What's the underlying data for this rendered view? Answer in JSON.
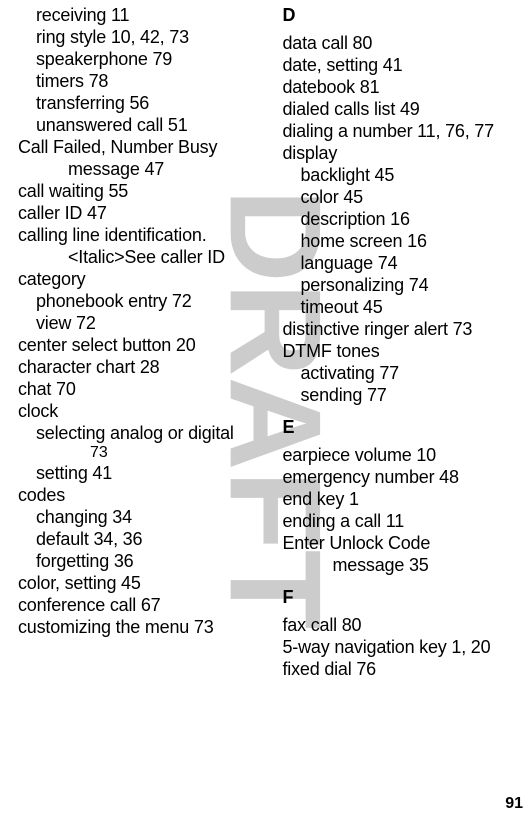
{
  "watermark": {
    "text": "DRAFT",
    "color": "#cccccc",
    "opacity": 1.0
  },
  "page_number": "91",
  "left_column": [
    {
      "cls": "sub1",
      "text": "receiving  11"
    },
    {
      "cls": "sub1",
      "text": "ring style  10, 42, 73"
    },
    {
      "cls": "sub1",
      "text": "speakerphone  79"
    },
    {
      "cls": "sub1",
      "text": "timers  78"
    },
    {
      "cls": "sub1",
      "text": "transferring  56"
    },
    {
      "cls": "sub1",
      "text": "unanswered call  51"
    },
    {
      "cls": "entry",
      "text": "Call Failed, Number Busy"
    },
    {
      "cls": "sub2",
      "text": "message  47"
    },
    {
      "cls": "entry",
      "text": "call waiting  55"
    },
    {
      "cls": "entry",
      "text": "caller ID  47"
    },
    {
      "cls": "entry",
      "text": "calling line identification."
    },
    {
      "cls": "sub2",
      "text": "<Italic>See caller ID"
    },
    {
      "cls": "entry",
      "text": "category"
    },
    {
      "cls": "sub1",
      "text": "phonebook entry  72"
    },
    {
      "cls": "sub1",
      "text": "view  72"
    },
    {
      "cls": "entry",
      "text": "center select button  20"
    },
    {
      "cls": "entry",
      "text": "character chart  28"
    },
    {
      "cls": "entry",
      "text": "chat  70"
    },
    {
      "cls": "entry",
      "text": "clock"
    },
    {
      "cls": "sub1",
      "text": "selecting analog or digital"
    },
    {
      "cls": "sub3",
      "text": "73"
    },
    {
      "cls": "sub1",
      "text": "setting  41"
    },
    {
      "cls": "entry",
      "text": "codes"
    },
    {
      "cls": "sub1",
      "text": "changing  34"
    },
    {
      "cls": "sub1",
      "text": "default  34, 36"
    },
    {
      "cls": "sub1",
      "text": "forgetting  36"
    },
    {
      "cls": "entry",
      "text": "color, setting  45"
    },
    {
      "cls": "entry",
      "text": "conference call  67"
    },
    {
      "cls": "entry",
      "text": "customizing the menu  73"
    }
  ],
  "right_column": [
    {
      "cls": "letter first",
      "text": "D"
    },
    {
      "cls": "entry",
      "text": "data call  80"
    },
    {
      "cls": "entry",
      "text": "date, setting  41"
    },
    {
      "cls": "entry",
      "text": "datebook  81"
    },
    {
      "cls": "entry",
      "text": "dialed calls list  49"
    },
    {
      "cls": "entry",
      "text": "dialing a number  11, 76, 77"
    },
    {
      "cls": "entry",
      "text": "display"
    },
    {
      "cls": "sub1",
      "text": "backlight  45"
    },
    {
      "cls": "sub1",
      "text": "color  45"
    },
    {
      "cls": "sub1",
      "text": "description  16"
    },
    {
      "cls": "sub1",
      "text": "home screen  16"
    },
    {
      "cls": "sub1",
      "text": "language  74"
    },
    {
      "cls": "sub1",
      "text": "personalizing  74"
    },
    {
      "cls": "sub1",
      "text": "timeout  45"
    },
    {
      "cls": "entry",
      "text": "distinctive ringer alert  73"
    },
    {
      "cls": "entry",
      "text": "DTMF tones"
    },
    {
      "cls": "sub1",
      "text": "activating  77"
    },
    {
      "cls": "sub1",
      "text": "sending  77"
    },
    {
      "cls": "letter",
      "text": "E"
    },
    {
      "cls": "entry",
      "text": "earpiece volume  10"
    },
    {
      "cls": "entry",
      "text": "emergency number  48"
    },
    {
      "cls": "entry",
      "text": "end key  1"
    },
    {
      "cls": "entry",
      "text": "ending a call  11"
    },
    {
      "cls": "entry",
      "text": "Enter Unlock Code"
    },
    {
      "cls": "sub2",
      "text": "message  35"
    },
    {
      "cls": "letter",
      "text": "F"
    },
    {
      "cls": "entry",
      "text": "fax call  80"
    },
    {
      "cls": "entry",
      "text": "5-way navigation key  1, 20"
    },
    {
      "cls": "entry",
      "text": "fixed dial  76"
    }
  ]
}
